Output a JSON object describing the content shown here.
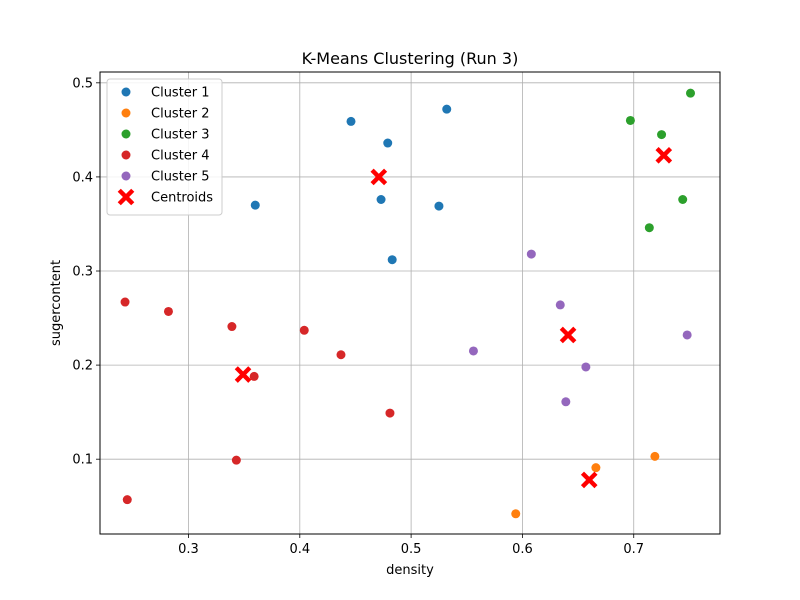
{
  "chart_data": {
    "type": "scatter",
    "title": "K-Means Clustering (Run 3)",
    "xlabel": "density",
    "ylabel": "sugercontent",
    "xlim": [
      0.2205,
      0.7775
    ],
    "ylim": [
      0.0205,
      0.5115
    ],
    "xticks": [
      "0.3",
      "0.4",
      "0.5",
      "0.6",
      "0.7"
    ],
    "yticks": [
      "0.1",
      "0.2",
      "0.3",
      "0.4",
      "0.5"
    ],
    "grid": true,
    "legend_position": "top-left",
    "series": [
      {
        "name": "Cluster 1",
        "color": "#1f77b4",
        "marker": "circle",
        "points": [
          [
            0.446,
            0.459
          ],
          [
            0.532,
            0.472
          ],
          [
            0.479,
            0.436
          ],
          [
            0.36,
            0.37
          ],
          [
            0.473,
            0.376
          ],
          [
            0.525,
            0.369
          ],
          [
            0.483,
            0.312
          ]
        ]
      },
      {
        "name": "Cluster 2",
        "color": "#ff7f0e",
        "marker": "circle",
        "points": [
          [
            0.594,
            0.042
          ],
          [
            0.666,
            0.091
          ],
          [
            0.719,
            0.103
          ]
        ]
      },
      {
        "name": "Cluster 3",
        "color": "#2ca02c",
        "marker": "circle",
        "points": [
          [
            0.697,
            0.46
          ],
          [
            0.751,
            0.489
          ],
          [
            0.725,
            0.445
          ],
          [
            0.744,
            0.376
          ],
          [
            0.714,
            0.346
          ]
        ]
      },
      {
        "name": "Cluster 4",
        "color": "#d62728",
        "marker": "circle",
        "points": [
          [
            0.243,
            0.267
          ],
          [
            0.282,
            0.257
          ],
          [
            0.339,
            0.241
          ],
          [
            0.404,
            0.237
          ],
          [
            0.437,
            0.211
          ],
          [
            0.359,
            0.188
          ],
          [
            0.481,
            0.149
          ],
          [
            0.343,
            0.099
          ],
          [
            0.245,
            0.057
          ]
        ]
      },
      {
        "name": "Cluster 5",
        "color": "#9467bd",
        "marker": "circle",
        "points": [
          [
            0.608,
            0.318
          ],
          [
            0.634,
            0.264
          ],
          [
            0.748,
            0.232
          ],
          [
            0.556,
            0.215
          ],
          [
            0.657,
            0.198
          ],
          [
            0.639,
            0.161
          ]
        ]
      },
      {
        "name": "Centroids",
        "color": "#ff0000",
        "marker": "x",
        "points": [
          [
            0.471,
            0.4
          ],
          [
            0.727,
            0.423
          ],
          [
            0.641,
            0.232
          ],
          [
            0.349,
            0.19
          ],
          [
            0.66,
            0.078
          ]
        ]
      }
    ]
  }
}
